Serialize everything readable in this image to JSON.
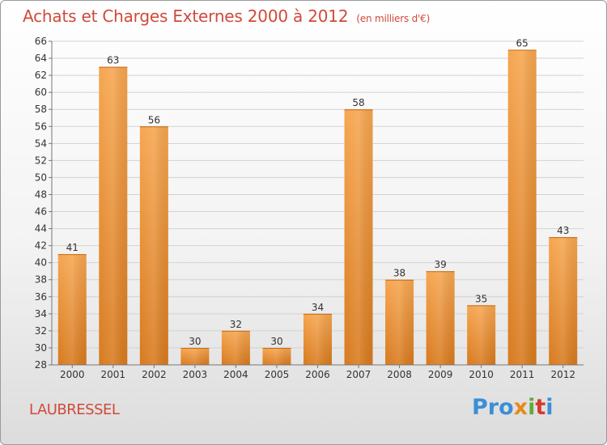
{
  "header": {
    "title": "Achats et Charges Externes 2000 à 2012",
    "subtitle": "(en milliers d'€)"
  },
  "footer": {
    "commune": "LAUBRESSEL",
    "logo": [
      "Pro",
      "x",
      "i",
      "t",
      "i"
    ]
  },
  "colors": {
    "bar_light": "#f6a650",
    "bar_dark": "#d87a1e",
    "title": "#d04a3a"
  },
  "chart_data": {
    "type": "bar",
    "title": "Achats et Charges Externes 2000 à 2012",
    "subtitle": "(en milliers d'€)",
    "categories": [
      "2000",
      "2001",
      "2002",
      "2003",
      "2004",
      "2005",
      "2006",
      "2007",
      "2008",
      "2009",
      "2010",
      "2011",
      "2012"
    ],
    "values": [
      41,
      63,
      56,
      30,
      32,
      30,
      34,
      58,
      38,
      39,
      35,
      65,
      43
    ],
    "ylim": [
      28,
      66
    ],
    "yticks": [
      28,
      30,
      32,
      34,
      36,
      38,
      40,
      42,
      44,
      46,
      48,
      50,
      52,
      54,
      56,
      58,
      60,
      62,
      64,
      66
    ],
    "grid": true
  }
}
